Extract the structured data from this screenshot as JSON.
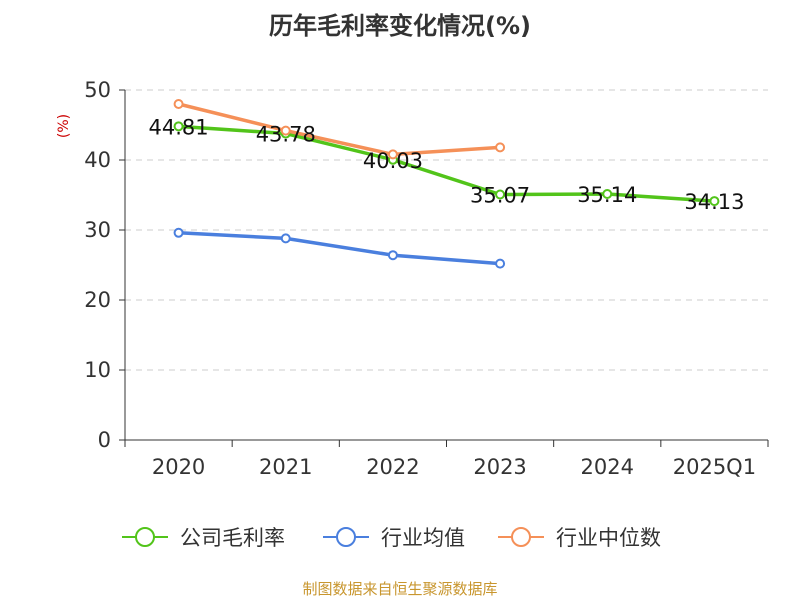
{
  "colors": {
    "company": "#52c41a",
    "industry_avg": "#4a7fde",
    "industry_median": "#f59058",
    "grid": "#cccccc",
    "axis": "#333333",
    "unit": "#cc0000",
    "source": "#c8962e"
  },
  "source_text": "制图数据来自恒生聚源数据库",
  "chart_data": {
    "type": "line",
    "title": "历年毛利率变化情况(%)",
    "ylabel": "(%)",
    "xlabel": "",
    "categories": [
      "2020",
      "2021",
      "2022",
      "2023",
      "2024",
      "2025Q1"
    ],
    "ylim": [
      0,
      50
    ],
    "yticks": [
      0,
      10,
      20,
      30,
      40,
      50
    ],
    "grid": true,
    "legend_position": "bottom",
    "series": [
      {
        "name": "公司毛利率",
        "color_key": "company",
        "values": [
          44.81,
          43.78,
          40.03,
          35.07,
          35.14,
          34.13
        ],
        "labels": [
          "44.81",
          "43.78",
          "40.03",
          "35.07",
          "35.14",
          "34.13"
        ]
      },
      {
        "name": "行业均值",
        "color_key": "industry_avg",
        "values": [
          29.6,
          28.8,
          26.4,
          25.2,
          null,
          null
        ]
      },
      {
        "name": "行业中位数",
        "color_key": "industry_median",
        "values": [
          48.0,
          44.2,
          40.8,
          41.8,
          null,
          null
        ]
      }
    ]
  }
}
